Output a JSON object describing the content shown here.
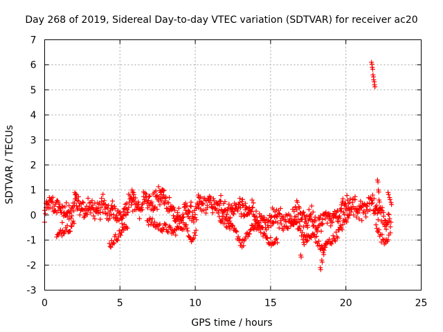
{
  "chart_data": {
    "type": "scatter",
    "title": "Day 268 of 2019, Sidereal Day-to-day VTEC variation (SDTVAR) for receiver ac20",
    "xlabel": "GPS time / hours",
    "ylabel": "SDTVAR / TECUs",
    "xlim": [
      0,
      25
    ],
    "ylim": [
      -3,
      7
    ],
    "xticks": [
      "0",
      "5",
      "10",
      "15",
      "20",
      "25"
    ],
    "yticks": [
      "-3",
      "-2",
      "-1",
      "0",
      "1",
      "2",
      "3",
      "4",
      "5",
      "6",
      "7"
    ],
    "grid": true,
    "marker": "+",
    "series": [
      {
        "name": "SDTVAR",
        "color": "#ff0000",
        "trend_x": [
          0,
          0.3,
          0.6,
          0.9,
          1.2,
          1.5,
          1.8,
          2.1,
          2.4,
          2.7,
          3.0,
          3.3,
          3.6,
          3.9,
          4.2,
          4.5,
          4.8,
          5.1,
          5.4,
          5.7,
          6.0,
          6.3,
          6.6,
          6.9,
          7.2,
          7.5,
          7.8,
          8.1,
          8.4,
          8.7,
          9.0,
          9.3,
          9.6,
          9.9,
          10.2,
          10.5,
          10.8,
          11.1,
          11.4,
          11.7,
          12.0,
          12.3,
          12.6,
          12.9,
          13.2,
          13.5,
          13.8,
          14.1,
          14.4,
          14.7,
          15.0,
          15.3,
          15.6,
          15.9,
          16.2,
          16.5,
          16.8,
          17.1,
          17.4,
          17.7,
          18.0,
          18.3,
          18.6,
          18.9,
          19.2,
          19.5,
          19.8,
          20.1,
          20.4,
          20.7,
          21.0,
          21.3,
          21.6,
          21.9,
          22.2,
          22.5,
          22.8,
          23.0
        ],
        "trend_y": [
          0.1,
          0.5,
          0.3,
          0.4,
          0.1,
          0.2,
          0.0,
          0.6,
          0.3,
          0.2,
          0.4,
          0.1,
          0.2,
          0.4,
          0.1,
          0.2,
          0.0,
          -0.1,
          0.2,
          0.6,
          0.4,
          0.3,
          0.5,
          0.6,
          0.4,
          0.7,
          0.8,
          0.4,
          0.2,
          0.0,
          -0.2,
          0.1,
          0.2,
          -0.1,
          0.3,
          0.4,
          0.5,
          0.5,
          0.3,
          0.4,
          0.2,
          0.0,
          0.3,
          0.4,
          0.2,
          0.0,
          0.2,
          -0.1,
          -0.3,
          -0.4,
          -0.2,
          0.0,
          -0.1,
          -0.4,
          -0.3,
          -0.1,
          0.3,
          0.0,
          -0.2,
          0.1,
          -0.4,
          -0.3,
          0.1,
          -0.2,
          0.0,
          -0.1,
          0.3,
          0.4,
          0.5,
          0.3,
          0.2,
          0.3,
          0.5,
          0.4,
          0.2,
          -0.1,
          -0.2,
          -0.5
        ],
        "lower_x": [
          0.8,
          1.1,
          1.4,
          1.7,
          2.0,
          4.3,
          4.6,
          4.9,
          5.2,
          5.5,
          6.8,
          7.1,
          7.4,
          7.7,
          8.0,
          8.3,
          8.6,
          8.9,
          9.2,
          9.5,
          9.8,
          10.1,
          11.6,
          11.9,
          12.2,
          12.5,
          12.8,
          13.1,
          13.4,
          13.7,
          14.0,
          14.3,
          14.6,
          14.9,
          15.2,
          15.5,
          16.4,
          16.7,
          17.0,
          17.3,
          17.6,
          17.9,
          18.2,
          18.5,
          18.8,
          19.1,
          19.4,
          19.7,
          20.0,
          20.3,
          22.0,
          22.3,
          22.6,
          22.9
        ],
        "lower_y": [
          -0.9,
          -0.7,
          -0.5,
          -0.5,
          -0.3,
          -1.2,
          -1.0,
          -0.8,
          -0.6,
          -0.4,
          -0.2,
          -0.3,
          -0.4,
          -0.5,
          -0.5,
          -0.6,
          -0.7,
          -0.5,
          -0.4,
          -0.6,
          -1.0,
          -0.6,
          -0.1,
          -0.2,
          -0.4,
          -0.6,
          -0.8,
          -1.2,
          -0.9,
          -0.6,
          -0.4,
          -0.5,
          -0.8,
          -1.0,
          -1.2,
          -0.9,
          -0.4,
          -0.3,
          -0.6,
          -1.0,
          -0.9,
          -0.8,
          -1.2,
          -1.4,
          -1.1,
          -1.0,
          -0.8,
          -0.5,
          -0.2,
          0.0,
          -0.3,
          -0.9,
          -1.0,
          -0.8
        ],
        "spikes": [
          {
            "x": [
              17.0,
              17.2,
              17.4
            ],
            "y": [
              -1.6,
              -1.1,
              -0.8
            ]
          },
          {
            "x": [
              18.3,
              18.4,
              18.5,
              18.6
            ],
            "y": [
              -2.1,
              -1.8,
              -1.5,
              -1.2
            ]
          },
          {
            "x": [
              21.7,
              21.75,
              21.8,
              21.85,
              21.9
            ],
            "y": [
              6.1,
              5.9,
              5.6,
              5.4,
              5.2
            ]
          },
          {
            "x": [
              22.1,
              22.15,
              22.2,
              22.3
            ],
            "y": [
              1.4,
              1.0,
              0.6,
              0.3
            ]
          },
          {
            "x": [
              22.8,
              22.9,
              23.0
            ],
            "y": [
              0.9,
              0.7,
              0.5
            ]
          },
          {
            "x": [
              2.0,
              2.1,
              5.8,
              5.9,
              7.7,
              7.9,
              10.2
            ],
            "y": [
              0.9,
              0.8,
              1.0,
              0.9,
              0.9,
              0.8,
              0.8
            ]
          }
        ]
      }
    ]
  }
}
